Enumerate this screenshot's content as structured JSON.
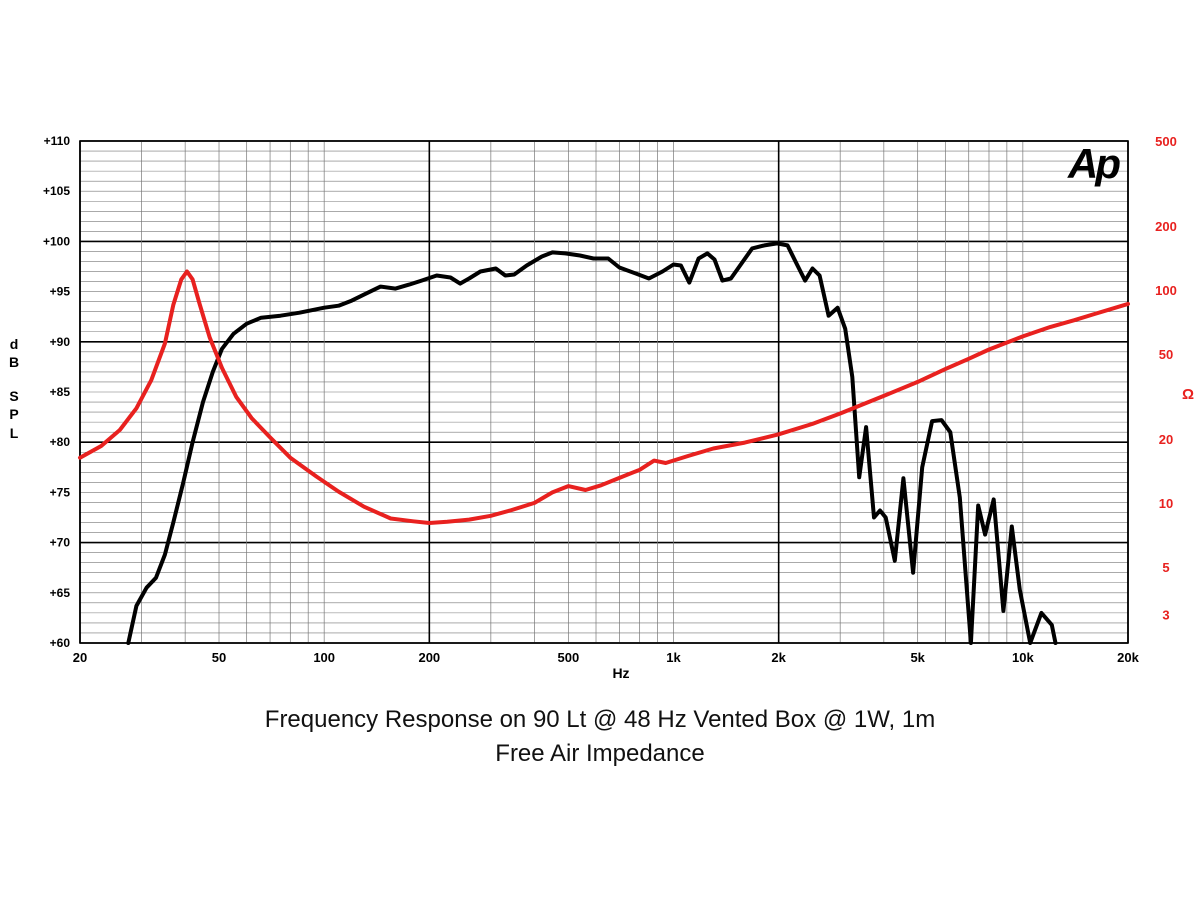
{
  "chart_data": {
    "type": "line",
    "title": "Frequency Response on 90 Lt @ 48 Hz Vented Box @ 1W, 1m",
    "subtitle": "Free Air Impedance",
    "xlabel": "Hz",
    "ylabel": "dB SPL",
    "ylabel_letters": [
      "d",
      "B",
      "S",
      "P",
      "L"
    ],
    "y2label": "Ω",
    "xscale": "log",
    "xlim": [
      20,
      20000
    ],
    "ylim": [
      60,
      110
    ],
    "y2scale": "log",
    "y2lim": [
      2.2,
      500
    ],
    "grid": true,
    "logo": "Ap",
    "x_ticks": [
      {
        "value": 20,
        "label": "20"
      },
      {
        "value": 50,
        "label": "50"
      },
      {
        "value": 100,
        "label": "100"
      },
      {
        "value": 200,
        "label": "200"
      },
      {
        "value": 500,
        "label": "500"
      },
      {
        "value": 1000,
        "label": "1k"
      },
      {
        "value": 2000,
        "label": "2k"
      },
      {
        "value": 5000,
        "label": "5k"
      },
      {
        "value": 10000,
        "label": "10k"
      },
      {
        "value": 20000,
        "label": "20k"
      }
    ],
    "y_ticks": [
      {
        "value": 60,
        "label": "+60"
      },
      {
        "value": 65,
        "label": "+65"
      },
      {
        "value": 70,
        "label": "+70"
      },
      {
        "value": 75,
        "label": "+75"
      },
      {
        "value": 80,
        "label": "+80"
      },
      {
        "value": 85,
        "label": "+85"
      },
      {
        "value": 90,
        "label": "+90"
      },
      {
        "value": 95,
        "label": "+95"
      },
      {
        "value": 100,
        "label": "+100"
      },
      {
        "value": 105,
        "label": "+105"
      },
      {
        "value": 110,
        "label": "+110"
      }
    ],
    "y2_ticks": [
      {
        "value": 3,
        "label": "3"
      },
      {
        "value": 5,
        "label": "5"
      },
      {
        "value": 10,
        "label": "10"
      },
      {
        "value": 20,
        "label": "20"
      },
      {
        "value": 50,
        "label": "50"
      },
      {
        "value": 100,
        "label": "100"
      },
      {
        "value": 200,
        "label": "200"
      },
      {
        "value": 500,
        "label": "500"
      }
    ],
    "series": [
      {
        "axis": "left",
        "color": "#000000",
        "points": [
          [
            27.5,
            60
          ],
          [
            29,
            63.7
          ],
          [
            31,
            65.5
          ],
          [
            33,
            66.5
          ],
          [
            35,
            68.8
          ],
          [
            37,
            72
          ],
          [
            39.5,
            76
          ],
          [
            42,
            80
          ],
          [
            45,
            84
          ],
          [
            48,
            87
          ],
          [
            51,
            89.3
          ],
          [
            55,
            90.8
          ],
          [
            60,
            91.8
          ],
          [
            66,
            92.4
          ],
          [
            75,
            92.6
          ],
          [
            85,
            92.9
          ],
          [
            100,
            93.4
          ],
          [
            110,
            93.6
          ],
          [
            120,
            94.1
          ],
          [
            130,
            94.7
          ],
          [
            145,
            95.5
          ],
          [
            160,
            95.3
          ],
          [
            175,
            95.7
          ],
          [
            190,
            96.1
          ],
          [
            210,
            96.6
          ],
          [
            230,
            96.4
          ],
          [
            245,
            95.8
          ],
          [
            260,
            96.3
          ],
          [
            280,
            97.0
          ],
          [
            310,
            97.3
          ],
          [
            330,
            96.6
          ],
          [
            350,
            96.7
          ],
          [
            380,
            97.6
          ],
          [
            420,
            98.5
          ],
          [
            450,
            98.9
          ],
          [
            490,
            98.8
          ],
          [
            540,
            98.6
          ],
          [
            590,
            98.3
          ],
          [
            650,
            98.3
          ],
          [
            700,
            97.4
          ],
          [
            780,
            96.8
          ],
          [
            850,
            96.3
          ],
          [
            930,
            97.0
          ],
          [
            1000,
            97.7
          ],
          [
            1050,
            97.6
          ],
          [
            1110,
            95.9
          ],
          [
            1180,
            98.3
          ],
          [
            1250,
            98.8
          ],
          [
            1310,
            98.2
          ],
          [
            1380,
            96.1
          ],
          [
            1460,
            96.3
          ],
          [
            1580,
            98.0
          ],
          [
            1680,
            99.3
          ],
          [
            1820,
            99.6
          ],
          [
            1980,
            99.8
          ],
          [
            2120,
            99.6
          ],
          [
            2250,
            97.8
          ],
          [
            2380,
            96.1
          ],
          [
            2500,
            97.3
          ],
          [
            2620,
            96.6
          ],
          [
            2780,
            92.6
          ],
          [
            2950,
            93.4
          ],
          [
            3100,
            91.3
          ],
          [
            3250,
            86.5
          ],
          [
            3400,
            76.5
          ],
          [
            3560,
            81.5
          ],
          [
            3750,
            72.5
          ],
          [
            3900,
            73.2
          ],
          [
            4050,
            72.5
          ],
          [
            4300,
            68.2
          ],
          [
            4550,
            76.4
          ],
          [
            4850,
            67
          ],
          [
            5150,
            77.5
          ],
          [
            5500,
            82.1
          ],
          [
            5850,
            82.2
          ],
          [
            6200,
            81
          ],
          [
            6600,
            74.5
          ],
          [
            7100,
            60
          ],
          [
            7450,
            73.7
          ],
          [
            7800,
            70.8
          ],
          [
            8250,
            74.3
          ],
          [
            8800,
            63.2
          ],
          [
            9300,
            71.6
          ],
          [
            9800,
            65.3
          ],
          [
            10500,
            60
          ],
          [
            11300,
            63
          ],
          [
            12100,
            61.8
          ],
          [
            12400,
            60
          ]
        ]
      },
      {
        "axis": "right",
        "color": "#e8211f",
        "points": [
          [
            20,
            16.3
          ],
          [
            23,
            18.5
          ],
          [
            26,
            22
          ],
          [
            29,
            27.8
          ],
          [
            32,
            37.7
          ],
          [
            35,
            56
          ],
          [
            37,
            85
          ],
          [
            39,
            112
          ],
          [
            40.5,
            122
          ],
          [
            42,
            112
          ],
          [
            44,
            86
          ],
          [
            47,
            60
          ],
          [
            51,
            43
          ],
          [
            56,
            31.5
          ],
          [
            62,
            25
          ],
          [
            70,
            20.3
          ],
          [
            80,
            16.3
          ],
          [
            95,
            13.3
          ],
          [
            110,
            11.3
          ],
          [
            130,
            9.6
          ],
          [
            155,
            8.45
          ],
          [
            180,
            8.2
          ],
          [
            200,
            8.05
          ],
          [
            225,
            8.15
          ],
          [
            260,
            8.35
          ],
          [
            300,
            8.7
          ],
          [
            340,
            9.2
          ],
          [
            400,
            10.0
          ],
          [
            450,
            11.2
          ],
          [
            500,
            12.0
          ],
          [
            560,
            11.5
          ],
          [
            620,
            12.1
          ],
          [
            700,
            13.1
          ],
          [
            800,
            14.3
          ],
          [
            880,
            15.8
          ],
          [
            950,
            15.4
          ],
          [
            1100,
            16.6
          ],
          [
            1300,
            18.0
          ],
          [
            1600,
            19.2
          ],
          [
            2000,
            21.0
          ],
          [
            2500,
            23.5
          ],
          [
            3000,
            26.3
          ],
          [
            4000,
            31.8
          ],
          [
            5000,
            37.0
          ],
          [
            6000,
            42.5
          ],
          [
            7000,
            47.5
          ],
          [
            8000,
            52.5
          ],
          [
            10000,
            60.5
          ],
          [
            12000,
            67
          ],
          [
            14000,
            72
          ],
          [
            16000,
            77
          ],
          [
            20000,
            86
          ]
        ]
      }
    ]
  }
}
